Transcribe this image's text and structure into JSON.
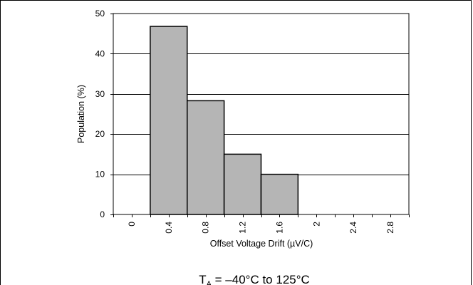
{
  "chart_data": {
    "type": "bar",
    "title": "",
    "xlabel": "Offset Voltage Drift (µV/C)",
    "ylabel": "Population (%)",
    "x_ticks": [
      "0",
      "0.4",
      "0.8",
      "1.2",
      "1.6",
      "2",
      "2.4",
      "2.8"
    ],
    "x_tick_values": [
      0,
      0.4,
      0.8,
      1.2,
      1.6,
      2.0,
      2.4,
      2.8
    ],
    "xlim": [
      -0.2,
      3.0
    ],
    "y_ticks": [
      "0",
      "10",
      "20",
      "30",
      "40",
      "50"
    ],
    "ylim": [
      0,
      50
    ],
    "bins": [
      {
        "x_start": 0.2,
        "x_end": 0.6,
        "value": 46.8
      },
      {
        "x_start": 0.6,
        "x_end": 1.0,
        "value": 28.3
      },
      {
        "x_start": 1.0,
        "x_end": 1.4,
        "value": 15.0
      },
      {
        "x_start": 1.4,
        "x_end": 1.8,
        "value": 10.0
      }
    ],
    "bar_color": "#b5b5b5",
    "grid": "horizontal",
    "legend": "none",
    "annotation": "Tₐ = –40°C to 125°C",
    "annotation_main": "T",
    "annotation_subscript": "A",
    "annotation_rest": " = –40°C to 125°C"
  }
}
